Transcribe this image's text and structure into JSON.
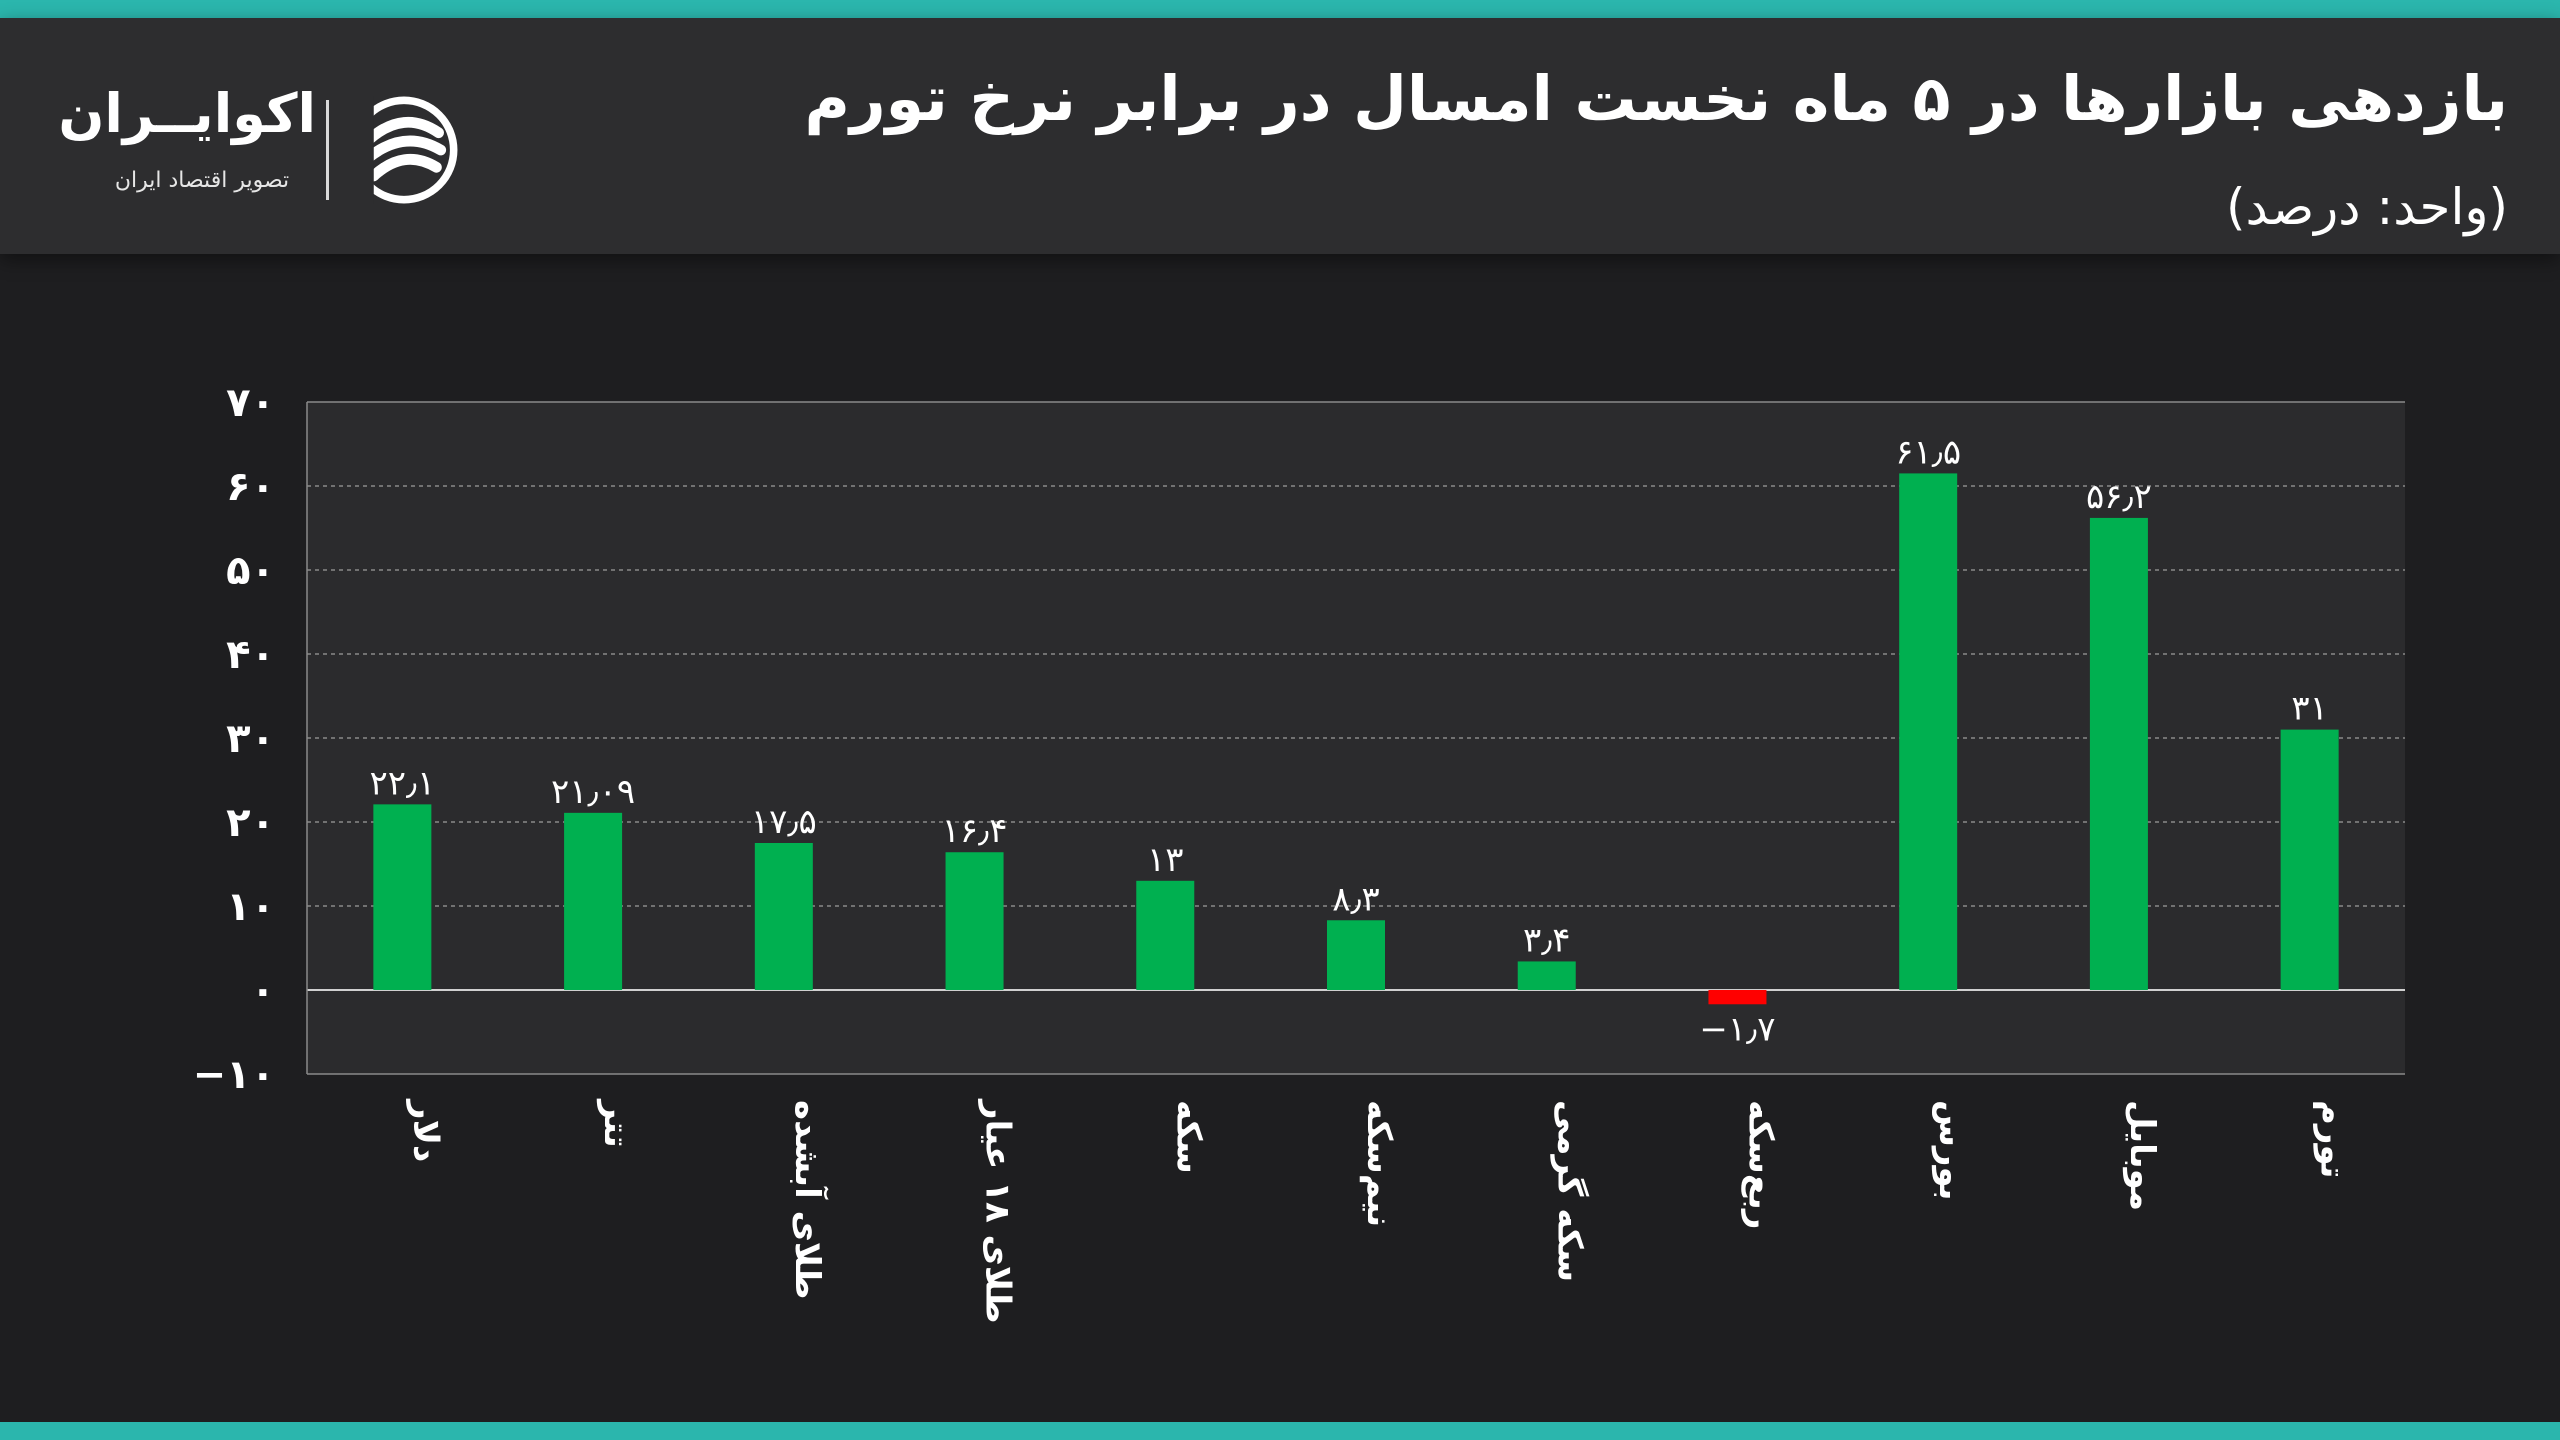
{
  "header": {
    "title": "بازدهی بازارها در ۵ ماه نخست امسال در برابر نرخ تورم",
    "subtitle": "(واحد: درصد)"
  },
  "logo": {
    "name": "اکوایــران",
    "tagline": "تصویر اقتصاد ایران",
    "icon": "ecoiran-swirl-icon"
  },
  "colors": {
    "positive": "#00b050",
    "negative": "#ff0000",
    "accent": "#2bb6ad",
    "plot_bg": "#2b2b2d",
    "page_bg": "#1e1e20"
  },
  "chart_data": {
    "type": "bar",
    "categories": [
      "دلار",
      "تتر",
      "طلای آبشده",
      "طلای ۱۸ عیار",
      "سکه",
      "نیم‌سکه",
      "سکه گرمی",
      "ربع‌سکه",
      "بورس",
      "موبایل",
      "تورم"
    ],
    "values": [
      22.1,
      21.09,
      17.5,
      16.4,
      13,
      8.3,
      3.4,
      -1.7,
      61.5,
      56.2,
      31
    ],
    "value_labels": [
      "۲۲٫۱",
      "۲۱٫۰۹",
      "۱۷٫۵",
      "۱۶٫۴",
      "۱۳",
      "۸٫۳",
      "۳٫۴",
      "−۱٫۷",
      "۶۱٫۵",
      "۵۶٫۲",
      "۳۱"
    ],
    "ylim": [
      -10,
      70
    ],
    "yticks": [
      70,
      60,
      50,
      40,
      30,
      20,
      10,
      0,
      -10
    ],
    "ytick_labels": [
      "۷۰",
      "۶۰",
      "۵۰",
      "۴۰",
      "۳۰",
      "۲۰",
      "۱۰",
      "۰",
      "−۱۰"
    ],
    "grid": true,
    "legend": "none"
  }
}
